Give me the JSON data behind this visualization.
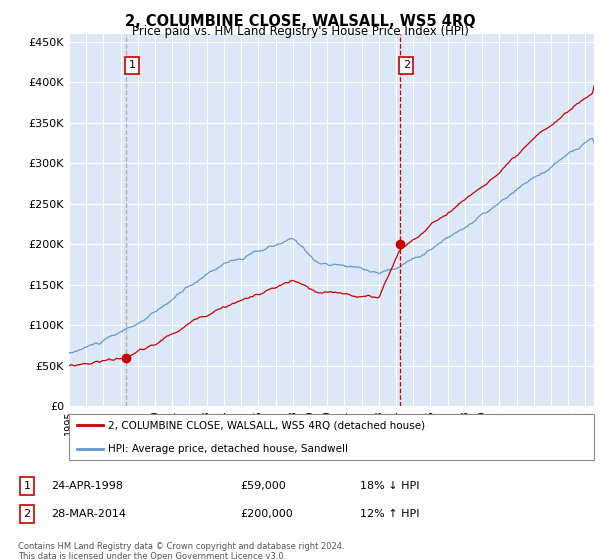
{
  "title": "2, COLUMBINE CLOSE, WALSALL, WS5 4RQ",
  "subtitle": "Price paid vs. HM Land Registry's House Price Index (HPI)",
  "bg_color": "#dce8f8",
  "line1_color": "#cc0000",
  "line2_color": "#6699cc",
  "vline1_color": "#aaaaaa",
  "vline1_style": "--",
  "vline2_color": "#cc0000",
  "vline2_style": "--",
  "marker1_date": 1998.31,
  "marker1_price": 59000,
  "marker2_date": 2014.24,
  "marker2_price": 200000,
  "legend_label1": "2, COLUMBINE CLOSE, WALSALL, WS5 4RQ (detached house)",
  "legend_label2": "HPI: Average price, detached house, Sandwell",
  "table_row1": [
    "1",
    "24-APR-1998",
    "£59,000",
    "18% ↓ HPI"
  ],
  "table_row2": [
    "2",
    "28-MAR-2014",
    "£200,000",
    "12% ↑ HPI"
  ],
  "footer": "Contains HM Land Registry data © Crown copyright and database right 2024.\nThis data is licensed under the Open Government Licence v3.0.",
  "ylim_bottom": 0,
  "ylim_top": 460000,
  "yticks": [
    0,
    50000,
    100000,
    150000,
    200000,
    250000,
    300000,
    350000,
    400000,
    450000
  ],
  "ytick_labels": [
    "£0",
    "£50K",
    "£100K",
    "£150K",
    "£200K",
    "£250K",
    "£300K",
    "£350K",
    "£400K",
    "£450K"
  ],
  "xmin": 1995.0,
  "xmax": 2025.5
}
